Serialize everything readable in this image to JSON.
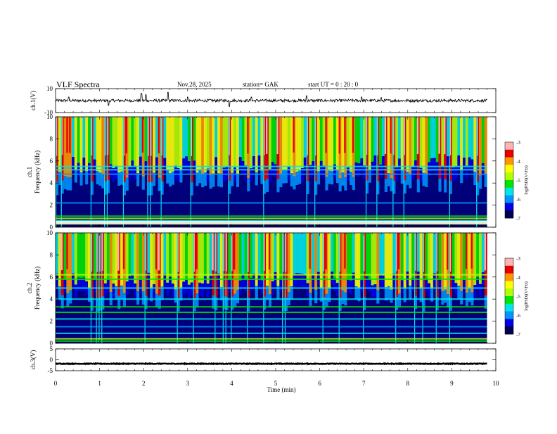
{
  "header": {
    "title": "VLF  Spectra",
    "date": "Nov.28, 2025",
    "station": "station= GAK",
    "start_ut": "start  UT  =    0  : 20 : 0"
  },
  "chart_data": [
    {
      "id": "ch1-waveform",
      "type": "line",
      "ylabel": "ch.1(V)",
      "ylim": [
        -10,
        10
      ],
      "yticks": [
        "10",
        "-10"
      ],
      "baseline": 0,
      "amplitude": 1.2,
      "spikes": [
        [
          0.3,
          3
        ],
        [
          1.2,
          -4
        ],
        [
          1.95,
          6
        ],
        [
          2.05,
          5
        ],
        [
          2.55,
          7
        ],
        [
          3.0,
          3
        ],
        [
          3.95,
          -5
        ],
        [
          4.45,
          3
        ],
        [
          5.7,
          4
        ],
        [
          6.95,
          3
        ],
        [
          7.4,
          2.5
        ]
      ]
    },
    {
      "id": "ch1-spectrogram",
      "type": "heatmap",
      "ylabel": "ch.1\nFrequency (kHz)",
      "ylim": [
        0,
        10
      ],
      "yticks": [
        "0",
        "2",
        "4",
        "6",
        "8",
        "10"
      ],
      "colorbar": {
        "label": "log(PSD)(V²/Hz)",
        "range": [
          -7,
          -3
        ],
        "ticks": [
          "-3",
          "-4",
          "-5",
          "-6",
          "-7"
        ]
      }
    },
    {
      "id": "ch2-spectrogram",
      "type": "heatmap",
      "ylabel": "ch.2\nFrequency (kHz)",
      "ylim": [
        0,
        10
      ],
      "yticks": [
        "0",
        "2",
        "4",
        "6",
        "8",
        "10"
      ],
      "colorbar": {
        "label": "log(PSD)(V²/Hz)",
        "range": [
          -7,
          -3
        ],
        "ticks": [
          "-3",
          "-4",
          "-5",
          "-6",
          "-7"
        ]
      }
    },
    {
      "id": "ch3-waveform",
      "type": "line",
      "ylabel": "ch.3(V)",
      "ylim": [
        -5,
        5
      ],
      "yticks": [
        "5",
        "0",
        "-5"
      ],
      "baseline": -1.8,
      "amplitude": 0.15
    }
  ],
  "x_axis": {
    "label": "Time  (min)",
    "range": [
      0,
      10
    ],
    "data_extent": 9.8,
    "ticks": [
      "0",
      "1",
      "2",
      "3",
      "4",
      "5",
      "6",
      "7",
      "8",
      "9",
      "10"
    ]
  },
  "colors": {
    "scale": [
      "#00007a",
      "#0000e6",
      "#0096ff",
      "#00e6e6",
      "#00e600",
      "#b4ff00",
      "#ffff00",
      "#ff9600",
      "#e60000",
      "#ffb4b4"
    ]
  }
}
